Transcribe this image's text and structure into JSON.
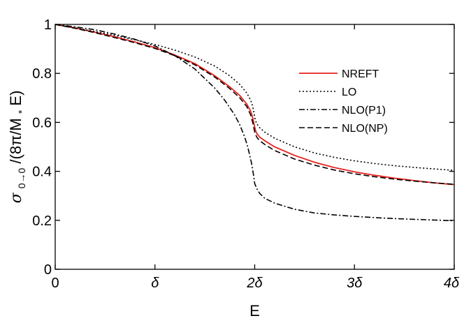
{
  "chart_data": {
    "type": "line",
    "xlabel": "E",
    "ylabel": {
      "prefix": "σ",
      "subscript": "0→0",
      "mid": "/(8π/M",
      "sub2": "*",
      "suffix": "E)"
    },
    "xlim": [
      0,
      4
    ],
    "ylim": [
      0,
      1
    ],
    "xticks": [
      {
        "value": 0,
        "label": "0"
      },
      {
        "value": 1,
        "label": "δ"
      },
      {
        "value": 2,
        "label": "2δ"
      },
      {
        "value": 3,
        "label": "3δ"
      },
      {
        "value": 4,
        "label": "4δ"
      }
    ],
    "yticks": [
      {
        "value": 0,
        "label": "0"
      },
      {
        "value": 0.2,
        "label": "0.2"
      },
      {
        "value": 0.4,
        "label": "0.4"
      },
      {
        "value": 0.6,
        "label": "0.6"
      },
      {
        "value": 0.8,
        "label": "0.8"
      },
      {
        "value": 1,
        "label": "1"
      }
    ],
    "legend_position": "upper-right",
    "grid": false,
    "series": [
      {
        "name": "NREFT",
        "color": "#e8201d",
        "dash": "solid",
        "x": [
          0,
          0.2,
          0.4,
          0.6,
          0.8,
          1.0,
          1.2,
          1.4,
          1.6,
          1.75,
          1.85,
          1.92,
          1.96,
          1.98,
          1.99,
          2.0,
          2.01,
          2.02,
          2.05,
          2.1,
          2.2,
          2.4,
          2.6,
          2.8,
          3.0,
          3.2,
          3.4,
          3.6,
          3.8,
          4.0
        ],
        "y": [
          1.0,
          0.985,
          0.968,
          0.949,
          0.928,
          0.905,
          0.875,
          0.84,
          0.79,
          0.745,
          0.71,
          0.675,
          0.645,
          0.62,
          0.6,
          0.58,
          0.565,
          0.555,
          0.54,
          0.525,
          0.5,
          0.465,
          0.437,
          0.415,
          0.398,
          0.384,
          0.372,
          0.362,
          0.353,
          0.346
        ]
      },
      {
        "name": "LO",
        "color": "#000000",
        "dash": "dotted",
        "x": [
          0,
          0.2,
          0.4,
          0.6,
          0.8,
          1.0,
          1.2,
          1.4,
          1.6,
          1.75,
          1.85,
          1.92,
          1.96,
          1.98,
          1.99,
          2.0,
          2.01,
          2.02,
          2.05,
          2.1,
          2.2,
          2.4,
          2.6,
          2.8,
          3.0,
          3.2,
          3.4,
          3.6,
          3.8,
          4.0
        ],
        "y": [
          1.0,
          0.986,
          0.971,
          0.955,
          0.937,
          0.918,
          0.895,
          0.867,
          0.83,
          0.79,
          0.755,
          0.72,
          0.69,
          0.665,
          0.645,
          0.62,
          0.605,
          0.595,
          0.578,
          0.56,
          0.535,
          0.5,
          0.475,
          0.457,
          0.443,
          0.432,
          0.423,
          0.416,
          0.41,
          0.404
        ]
      },
      {
        "name": "NLO(P1)",
        "color": "#000000",
        "dash": "dashdot",
        "x": [
          0,
          0.2,
          0.4,
          0.6,
          0.8,
          1.0,
          1.2,
          1.4,
          1.6,
          1.7,
          1.8,
          1.85,
          1.9,
          1.93,
          1.95,
          1.97,
          1.98,
          1.99,
          2.0,
          2.02,
          2.05,
          2.1,
          2.2,
          2.4,
          2.6,
          2.8,
          3.0,
          3.2,
          3.4,
          3.6,
          3.8,
          4.0
        ],
        "y": [
          1.0,
          0.99,
          0.978,
          0.96,
          0.939,
          0.912,
          0.872,
          0.818,
          0.74,
          0.69,
          0.63,
          0.59,
          0.54,
          0.5,
          0.465,
          0.43,
          0.405,
          0.38,
          0.35,
          0.33,
          0.31,
          0.29,
          0.27,
          0.245,
          0.23,
          0.222,
          0.216,
          0.211,
          0.207,
          0.204,
          0.201,
          0.198
        ]
      },
      {
        "name": "NLO(NP)",
        "color": "#000000",
        "dash": "dashed",
        "x": [
          0,
          0.2,
          0.4,
          0.6,
          0.8,
          1.0,
          1.2,
          1.4,
          1.6,
          1.75,
          1.85,
          1.92,
          1.96,
          1.98,
          1.99,
          2.0,
          2.01,
          2.02,
          2.05,
          2.1,
          2.2,
          2.4,
          2.6,
          2.8,
          3.0,
          3.2,
          3.4,
          3.6,
          3.8,
          4.0
        ],
        "y": [
          1.0,
          0.984,
          0.966,
          0.946,
          0.925,
          0.902,
          0.872,
          0.835,
          0.785,
          0.738,
          0.7,
          0.665,
          0.63,
          0.6,
          0.58,
          0.56,
          0.55,
          0.54,
          0.525,
          0.51,
          0.485,
          0.45,
          0.425,
          0.405,
          0.39,
          0.378,
          0.368,
          0.36,
          0.353,
          0.347
        ]
      }
    ]
  }
}
